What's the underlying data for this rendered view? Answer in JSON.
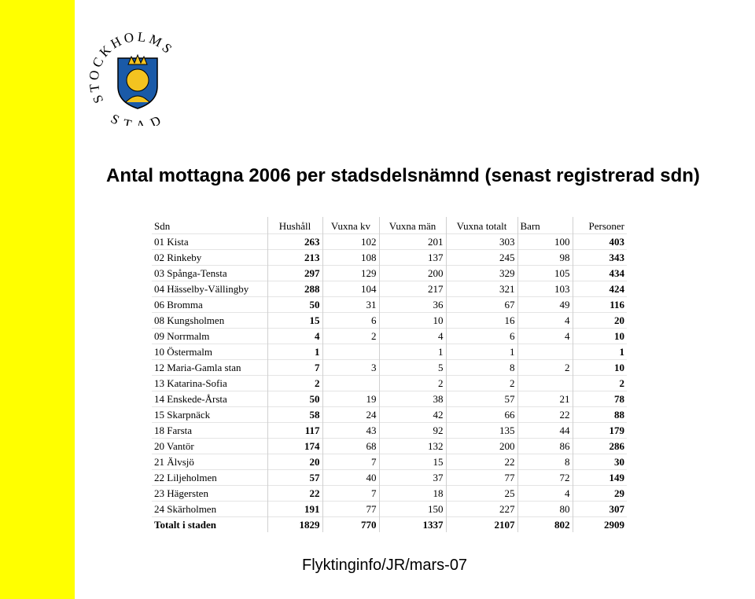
{
  "logo": {
    "top_text": "STOCKHOLMS",
    "bottom_text": "STAD"
  },
  "title": "Antal mottagna 2006 per stadsdelsnämnd (senast registrerad sdn)",
  "table": {
    "header": [
      "Sdn",
      "Hushåll",
      "Vuxna kv",
      "Vuxna män",
      "Vuxna totalt",
      "Barn",
      "Personer"
    ],
    "rows": [
      [
        "01 Kista",
        263,
        102,
        201,
        303,
        100,
        403
      ],
      [
        "02 Rinkeby",
        213,
        108,
        137,
        245,
        98,
        343
      ],
      [
        "03 Spånga-Tensta",
        297,
        129,
        200,
        329,
        105,
        434
      ],
      [
        "04 Hässelby-Vällingby",
        288,
        104,
        217,
        321,
        103,
        424
      ],
      [
        "06 Bromma",
        50,
        31,
        36,
        67,
        49,
        116
      ],
      [
        "08 Kungsholmen",
        15,
        6,
        10,
        16,
        4,
        20
      ],
      [
        "09 Norrmalm",
        4,
        2,
        4,
        6,
        4,
        10
      ],
      [
        "10 Östermalm",
        1,
        null,
        1,
        1,
        null,
        1
      ],
      [
        "12 Maria-Gamla stan",
        7,
        3,
        5,
        8,
        2,
        10
      ],
      [
        "13 Katarina-Sofia",
        2,
        null,
        2,
        2,
        null,
        2
      ],
      [
        "14 Enskede-Årsta",
        50,
        19,
        38,
        57,
        21,
        78
      ],
      [
        "15 Skarpnäck",
        58,
        24,
        42,
        66,
        22,
        88
      ],
      [
        "18 Farsta",
        117,
        43,
        92,
        135,
        44,
        179
      ],
      [
        "20 Vantör",
        174,
        68,
        132,
        200,
        86,
        286
      ],
      [
        "21 Älvsjö",
        20,
        7,
        15,
        22,
        8,
        30
      ],
      [
        "22 Liljeholmen",
        57,
        40,
        37,
        77,
        72,
        149
      ],
      [
        "23 Hägersten",
        22,
        7,
        18,
        25,
        4,
        29
      ],
      [
        "24 Skärholmen",
        191,
        77,
        150,
        227,
        80,
        307
      ],
      [
        "Totalt i staden",
        1829,
        770,
        1337,
        2107,
        802,
        2909
      ]
    ]
  },
  "footer": "Flyktinginfo/JR/mars-07"
}
